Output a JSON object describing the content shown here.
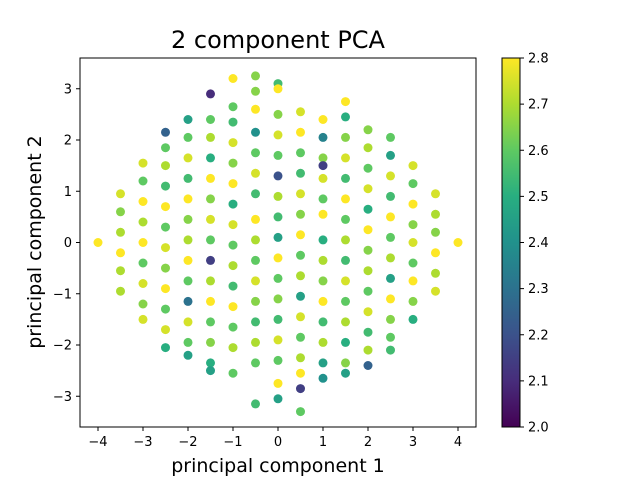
{
  "chart_data": {
    "type": "scatter",
    "title": "2 component PCA",
    "xlabel": "principal component 1",
    "ylabel": "principal component 2",
    "xlim": [
      -4.4,
      4.4
    ],
    "ylim": [
      -3.6,
      3.6
    ],
    "xticks": [
      -4,
      -3,
      -2,
      -1,
      0,
      1,
      2,
      3,
      4
    ],
    "yticks": [
      -3,
      -2,
      -1,
      0,
      1,
      2,
      3
    ],
    "xtick_labels": [
      "−4",
      "−3",
      "−2",
      "−1",
      "0",
      "1",
      "2",
      "3",
      "4"
    ],
    "ytick_labels": [
      "−3",
      "−2",
      "−1",
      "0",
      "1",
      "2",
      "3"
    ],
    "grid": false,
    "legend": "none",
    "colorbar": {
      "colormap": "viridis",
      "range": [
        2.0,
        2.8
      ],
      "ticks": [
        2.0,
        2.1,
        2.2,
        2.3,
        2.4,
        2.5,
        2.6,
        2.7,
        2.8
      ],
      "tick_labels": [
        "2.0",
        "2.1",
        "2.2",
        "2.3",
        "2.4",
        "2.5",
        "2.6",
        "2.7",
        "2.8"
      ]
    },
    "points": [
      [
        -4,
        0,
        2.8
      ],
      [
        4,
        0,
        2.8
      ],
      [
        -3.5,
        0.95,
        2.75
      ],
      [
        -3.5,
        0.6,
        2.65
      ],
      [
        -3.5,
        0.2,
        2.7
      ],
      [
        -3.5,
        -0.2,
        2.8
      ],
      [
        -3.5,
        -0.55,
        2.7
      ],
      [
        -3.5,
        -0.95,
        2.7
      ],
      [
        3.5,
        0.95,
        2.75
      ],
      [
        3.5,
        0.55,
        2.7
      ],
      [
        3.5,
        0.2,
        2.65
      ],
      [
        3.5,
        -0.2,
        2.8
      ],
      [
        3.5,
        -0.6,
        2.7
      ],
      [
        3.5,
        -0.95,
        2.75
      ],
      [
        -3,
        1.55,
        2.75
      ],
      [
        -3,
        1.2,
        2.6
      ],
      [
        -3,
        0.8,
        2.8
      ],
      [
        -3,
        0.4,
        2.7
      ],
      [
        -3,
        0.0,
        2.8
      ],
      [
        -3,
        -0.4,
        2.6
      ],
      [
        -3,
        -0.8,
        2.75
      ],
      [
        -3,
        -1.2,
        2.65
      ],
      [
        -3,
        -1.5,
        2.75
      ],
      [
        3,
        1.5,
        2.75
      ],
      [
        3,
        1.15,
        2.6
      ],
      [
        3,
        0.75,
        2.8
      ],
      [
        3,
        0.35,
        2.65
      ],
      [
        3,
        0.0,
        2.75
      ],
      [
        3,
        -0.4,
        2.6
      ],
      [
        3,
        -0.75,
        2.8
      ],
      [
        3,
        -1.15,
        2.65
      ],
      [
        3,
        -1.5,
        2.5
      ],
      [
        -2.5,
        2.15,
        2.25
      ],
      [
        -2.5,
        1.85,
        2.6
      ],
      [
        -2.5,
        1.5,
        2.7
      ],
      [
        -2.5,
        1.1,
        2.55
      ],
      [
        -2.5,
        0.7,
        2.8
      ],
      [
        -2.5,
        0.3,
        2.6
      ],
      [
        -2.5,
        -0.1,
        2.75
      ],
      [
        -2.5,
        -0.5,
        2.65
      ],
      [
        -2.5,
        -0.9,
        2.8
      ],
      [
        -2.5,
        -1.3,
        2.6
      ],
      [
        -2.5,
        -1.7,
        2.75
      ],
      [
        -2.5,
        -2.05,
        2.5
      ],
      [
        2.5,
        2.05,
        2.6
      ],
      [
        2.5,
        1.7,
        2.45
      ],
      [
        2.5,
        1.3,
        2.75
      ],
      [
        2.5,
        0.9,
        2.55
      ],
      [
        2.5,
        0.5,
        2.8
      ],
      [
        2.5,
        0.1,
        2.6
      ],
      [
        2.5,
        -0.3,
        2.7
      ],
      [
        2.5,
        -0.7,
        2.45
      ],
      [
        2.5,
        -1.1,
        2.8
      ],
      [
        2.5,
        -1.5,
        2.65
      ],
      [
        2.5,
        -1.85,
        2.6
      ],
      [
        2.5,
        -2.1,
        2.55
      ],
      [
        -2,
        2.4,
        2.45
      ],
      [
        -2,
        2.05,
        2.6
      ],
      [
        -2,
        1.65,
        2.75
      ],
      [
        -2,
        1.25,
        2.55
      ],
      [
        -2,
        0.85,
        2.8
      ],
      [
        -2,
        0.45,
        2.65
      ],
      [
        -2,
        0.05,
        2.7
      ],
      [
        -2,
        -0.35,
        2.8
      ],
      [
        -2,
        -0.75,
        2.6
      ],
      [
        -2,
        -1.15,
        2.3
      ],
      [
        -2,
        -1.55,
        2.75
      ],
      [
        -2,
        -1.95,
        2.6
      ],
      [
        -2,
        -2.2,
        2.45
      ],
      [
        2,
        2.2,
        2.65
      ],
      [
        2,
        1.85,
        2.7
      ],
      [
        2,
        1.45,
        2.6
      ],
      [
        2,
        1.05,
        2.75
      ],
      [
        2,
        0.65,
        2.5
      ],
      [
        2,
        0.25,
        2.8
      ],
      [
        2,
        -0.15,
        2.65
      ],
      [
        2,
        -0.55,
        2.7
      ],
      [
        2,
        -0.95,
        2.6
      ],
      [
        2,
        -1.35,
        2.75
      ],
      [
        2,
        -1.75,
        2.55
      ],
      [
        2,
        -2.1,
        2.7
      ],
      [
        2,
        -2.4,
        2.25
      ],
      [
        -1.5,
        2.9,
        2.1
      ],
      [
        -1.5,
        2.4,
        2.6
      ],
      [
        -1.5,
        2.05,
        2.7
      ],
      [
        -1.5,
        1.65,
        2.5
      ],
      [
        -1.5,
        1.25,
        2.8
      ],
      [
        -1.5,
        0.85,
        2.65
      ],
      [
        -1.5,
        0.45,
        2.75
      ],
      [
        -1.5,
        0.05,
        2.6
      ],
      [
        -1.5,
        -0.35,
        2.15
      ],
      [
        -1.5,
        -0.75,
        2.7
      ],
      [
        -1.5,
        -1.15,
        2.8
      ],
      [
        -1.5,
        -1.55,
        2.6
      ],
      [
        -1.5,
        -1.95,
        2.65
      ],
      [
        -1.5,
        -2.35,
        2.5
      ],
      [
        -1.5,
        -2.5,
        2.45
      ],
      [
        1.5,
        2.75,
        2.8
      ],
      [
        1.5,
        2.45,
        2.5
      ],
      [
        1.5,
        2.05,
        2.65
      ],
      [
        1.5,
        1.65,
        2.75
      ],
      [
        1.5,
        1.25,
        2.55
      ],
      [
        1.5,
        0.85,
        2.8
      ],
      [
        1.5,
        0.45,
        2.6
      ],
      [
        1.5,
        0.05,
        2.7
      ],
      [
        1.5,
        -0.35,
        2.55
      ],
      [
        1.5,
        -0.75,
        2.75
      ],
      [
        1.5,
        -1.15,
        2.6
      ],
      [
        1.5,
        -1.55,
        2.7
      ],
      [
        1.5,
        -1.95,
        2.5
      ],
      [
        1.5,
        -2.35,
        2.65
      ],
      [
        1.5,
        -2.55,
        2.45
      ],
      [
        -1,
        3.2,
        2.8
      ],
      [
        -1,
        2.65,
        2.6
      ],
      [
        -1,
        2.35,
        2.55
      ],
      [
        -1,
        1.95,
        2.75
      ],
      [
        -1,
        1.55,
        2.65
      ],
      [
        -1,
        1.15,
        2.8
      ],
      [
        -1,
        0.75,
        2.5
      ],
      [
        -1,
        0.35,
        2.75
      ],
      [
        -1,
        -0.05,
        2.6
      ],
      [
        -1,
        -0.45,
        2.7
      ],
      [
        -1,
        -0.85,
        2.55
      ],
      [
        -1,
        -1.25,
        2.8
      ],
      [
        -1,
        -1.65,
        2.6
      ],
      [
        -1,
        -2.05,
        2.7
      ],
      [
        -1,
        -2.55,
        2.6
      ],
      [
        1,
        2.4,
        2.8
      ],
      [
        1,
        2.05,
        2.35
      ],
      [
        1,
        1.65,
        2.65
      ],
      [
        1,
        1.5,
        2.15
      ],
      [
        1,
        1.25,
        2.75
      ],
      [
        1,
        0.85,
        2.6
      ],
      [
        1,
        0.55,
        2.8
      ],
      [
        1,
        0.05,
        2.5
      ],
      [
        1,
        -0.35,
        2.7
      ],
      [
        1,
        -0.75,
        2.65
      ],
      [
        1,
        -1.15,
        2.8
      ],
      [
        1,
        -1.55,
        2.55
      ],
      [
        1,
        -1.95,
        2.7
      ],
      [
        1,
        -2.35,
        2.45
      ],
      [
        1,
        -2.65,
        2.4
      ],
      [
        -0.5,
        3.25,
        2.65
      ],
      [
        -0.5,
        2.95,
        2.65
      ],
      [
        -0.5,
        2.6,
        2.8
      ],
      [
        -0.5,
        2.15,
        2.4
      ],
      [
        -0.5,
        1.75,
        2.6
      ],
      [
        -0.5,
        1.35,
        2.75
      ],
      [
        -0.5,
        0.95,
        2.55
      ],
      [
        -0.5,
        0.45,
        2.8
      ],
      [
        -0.5,
        0.05,
        2.7
      ],
      [
        -0.5,
        -0.35,
        2.6
      ],
      [
        -0.5,
        -0.75,
        2.75
      ],
      [
        -0.5,
        -1.15,
        2.65
      ],
      [
        -0.5,
        -1.55,
        2.55
      ],
      [
        -0.5,
        -1.95,
        2.7
      ],
      [
        -0.5,
        -2.35,
        2.6
      ],
      [
        -0.5,
        -3.15,
        2.55
      ],
      [
        0.5,
        2.55,
        2.75
      ],
      [
        0.5,
        2.15,
        2.8
      ],
      [
        0.5,
        1.75,
        2.6
      ],
      [
        0.5,
        1.35,
        2.55
      ],
      [
        0.5,
        0.95,
        2.75
      ],
      [
        0.5,
        0.55,
        2.65
      ],
      [
        0.5,
        0.15,
        2.8
      ],
      [
        0.5,
        -0.25,
        2.6
      ],
      [
        0.5,
        -0.65,
        2.7
      ],
      [
        0.5,
        -1.05,
        2.45
      ],
      [
        0.5,
        -1.45,
        2.75
      ],
      [
        0.5,
        -1.85,
        2.6
      ],
      [
        0.5,
        -2.25,
        2.7
      ],
      [
        0.5,
        -2.55,
        2.8
      ],
      [
        0.5,
        -2.85,
        2.15
      ],
      [
        0.5,
        -3.3,
        2.6
      ],
      [
        0,
        3.1,
        2.55
      ],
      [
        0,
        3.0,
        2.8
      ],
      [
        0,
        2.5,
        2.65
      ],
      [
        0,
        2.1,
        2.75
      ],
      [
        0,
        1.7,
        2.6
      ],
      [
        0,
        1.3,
        2.2
      ],
      [
        0,
        0.9,
        2.7
      ],
      [
        0,
        0.5,
        2.55
      ],
      [
        0,
        0.1,
        2.45
      ],
      [
        0,
        -0.3,
        2.8
      ],
      [
        0,
        -0.7,
        2.6
      ],
      [
        0,
        -1.1,
        2.65
      ],
      [
        0,
        -1.5,
        2.55
      ],
      [
        0,
        -1.9,
        2.75
      ],
      [
        0,
        -2.3,
        2.6
      ],
      [
        0,
        -2.75,
        2.8
      ],
      [
        0,
        -3.05,
        2.45
      ]
    ]
  }
}
